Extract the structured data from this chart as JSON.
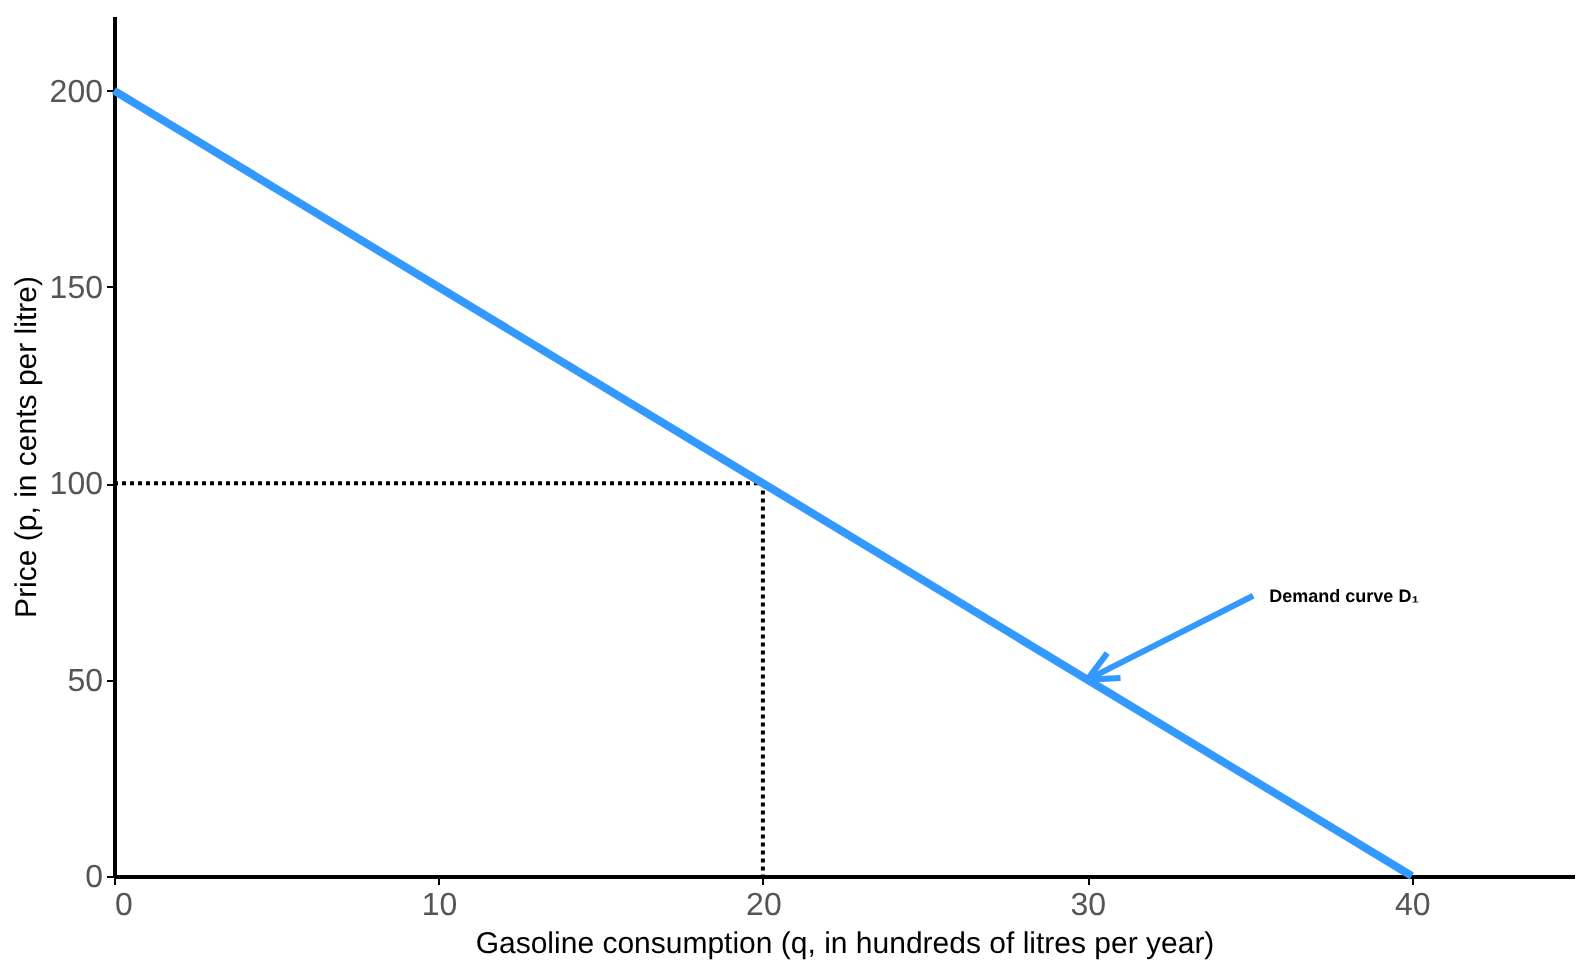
{
  "chart_data": {
    "type": "line",
    "xlabel": "Gasoline consumption (q, in hundreds of litres per year)",
    "ylabel": "Price (p, in cents per litre)",
    "series": [
      {
        "color": "#000000",
        "x": [
          0,
          20,
          20
        ],
        "values": [
          100,
          100,
          0
        ],
        "line_style": "dotted"
      },
      {
        "color": "#3399ff",
        "x": [
          0,
          40
        ],
        "values": [
          200,
          0
        ],
        "line_style": "solid"
      }
    ],
    "annotations": [
      {
        "text": "Demand curve D₁",
        "x": 30,
        "y": 50
      }
    ],
    "xlim": [
      0,
      45
    ],
    "xticks": [
      0,
      10,
      20,
      30,
      40
    ],
    "ylim": [
      0,
      219
    ],
    "yticks": [
      0,
      50,
      100,
      150,
      200
    ],
    "grid": false,
    "marker": "none"
  }
}
